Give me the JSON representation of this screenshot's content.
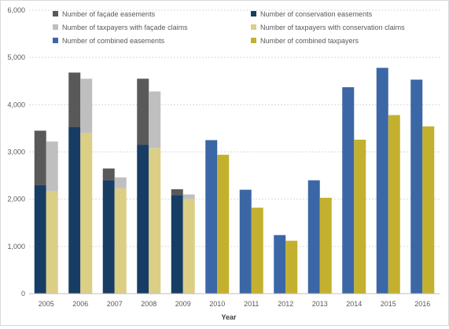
{
  "chart_data": {
    "type": "bar",
    "stacked_groups": true,
    "title": "",
    "xlabel": "Year",
    "ylabel": "",
    "ylim": [
      0,
      6000
    ],
    "yticks": [
      0,
      1000,
      2000,
      3000,
      4000,
      5000,
      6000
    ],
    "ytick_labels": [
      "0",
      "1,000",
      "2,000",
      "3,000",
      "4,000",
      "5,000",
      "6,000"
    ],
    "grid": true,
    "legend_position": "top",
    "categories": [
      "2005",
      "2006",
      "2007",
      "2008",
      "2009",
      "2010",
      "2011",
      "2012",
      "2013",
      "2014",
      "2015",
      "2016"
    ],
    "series": [
      {
        "name": "Number of façade easements",
        "group": "easements",
        "color": "#595959",
        "values": [
          1150,
          1150,
          250,
          1400,
          120,
          null,
          null,
          null,
          null,
          null,
          null,
          null
        ]
      },
      {
        "name": "Number of conservation easements",
        "group": "easements",
        "color": "#173d64",
        "values": [
          2300,
          3530,
          2400,
          3150,
          2090,
          null,
          null,
          null,
          null,
          null,
          null,
          null
        ]
      },
      {
        "name": "Number of taxpayers with façade claims",
        "group": "taxpayers",
        "color": "#bfbfbf",
        "values": [
          1050,
          1150,
          230,
          1200,
          100,
          null,
          null,
          null,
          null,
          null,
          null,
          null
        ]
      },
      {
        "name": "Number of taxpayers with conservation claims",
        "group": "taxpayers",
        "color": "#dbcf86",
        "values": [
          2170,
          3400,
          2230,
          3080,
          2000,
          null,
          null,
          null,
          null,
          null,
          null,
          null
        ]
      },
      {
        "name": "Number of combined easements",
        "group": "easements",
        "color": "#3b67a6",
        "values": [
          null,
          null,
          null,
          null,
          null,
          3250,
          2200,
          1240,
          2400,
          4370,
          4780,
          4530
        ]
      },
      {
        "name": "Number of combined taxpayers",
        "group": "taxpayers",
        "color": "#c4b02f",
        "values": [
          null,
          null,
          null,
          null,
          null,
          2940,
          1820,
          1120,
          2030,
          3260,
          3780,
          3540
        ]
      }
    ]
  }
}
